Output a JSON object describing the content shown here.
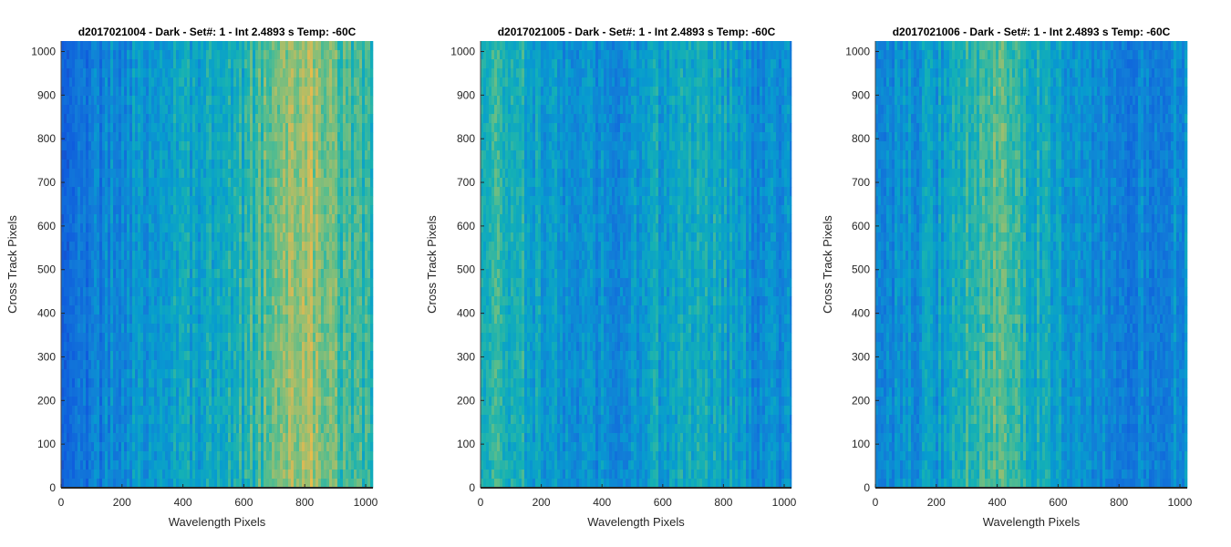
{
  "chart_data": [
    {
      "type": "heatmap",
      "title": "d2017021004 - Dark - Set#: 1 - Int 2.4893 s Temp: -60C",
      "xlabel": "Wavelength Pixels",
      "ylabel": "Cross Track Pixels",
      "xlim": [
        0,
        1024
      ],
      "ylim": [
        0,
        1024
      ],
      "xticks": [
        0,
        200,
        400,
        600,
        800,
        1000
      ],
      "yticks": [
        0,
        100,
        200,
        300,
        400,
        500,
        600,
        700,
        800,
        900,
        1000
      ],
      "colormap": "parula",
      "color_profile_x": [
        0,
        100,
        200,
        300,
        400,
        500,
        600,
        700,
        800,
        900,
        1024
      ],
      "color_profile_level": [
        0.15,
        0.28,
        0.36,
        0.4,
        0.42,
        0.44,
        0.5,
        0.62,
        0.72,
        0.58,
        0.5
      ]
    },
    {
      "type": "heatmap",
      "title": "d2017021005 - Dark - Set#: 1 - Int 2.4893 s Temp: -60C",
      "xlabel": "Wavelength Pixels",
      "ylabel": "Cross Track Pixels",
      "xlim": [
        0,
        1024
      ],
      "ylim": [
        0,
        1024
      ],
      "xticks": [
        0,
        200,
        400,
        600,
        800,
        1000
      ],
      "yticks": [
        0,
        100,
        200,
        300,
        400,
        500,
        600,
        700,
        800,
        900,
        1000
      ],
      "colormap": "parula",
      "color_profile_x": [
        0,
        100,
        200,
        300,
        400,
        500,
        600,
        700,
        800,
        900,
        1024
      ],
      "color_profile_level": [
        0.52,
        0.5,
        0.42,
        0.36,
        0.34,
        0.38,
        0.44,
        0.48,
        0.44,
        0.36,
        0.34
      ]
    },
    {
      "type": "heatmap",
      "title": "d2017021006 - Dark - Set#: 1 - Int 2.4893 s Temp: -60C",
      "xlabel": "Wavelength Pixels",
      "ylabel": "Cross Track Pixels",
      "xlim": [
        0,
        1024
      ],
      "ylim": [
        0,
        1024
      ],
      "xticks": [
        0,
        200,
        400,
        600,
        800,
        1000
      ],
      "yticks": [
        0,
        100,
        200,
        300,
        400,
        500,
        600,
        700,
        800,
        900,
        1000
      ],
      "colormap": "parula",
      "color_profile_x": [
        0,
        100,
        200,
        300,
        400,
        500,
        600,
        700,
        800,
        900,
        1024
      ],
      "color_profile_level": [
        0.34,
        0.36,
        0.4,
        0.52,
        0.58,
        0.5,
        0.42,
        0.36,
        0.3,
        0.32,
        0.36
      ]
    }
  ]
}
